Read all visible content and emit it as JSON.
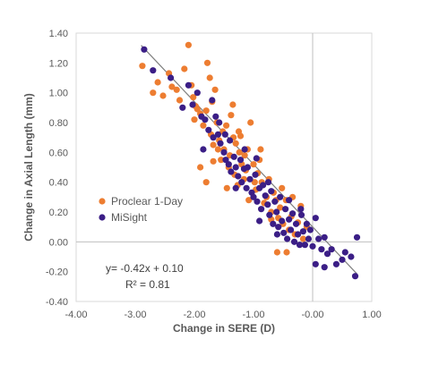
{
  "chart_data": {
    "type": "scatter",
    "title": "",
    "xlabel": "Change in SERE (D)",
    "ylabel": "Change in Axial Length  (mm)",
    "xlim": [
      -4.0,
      1.0
    ],
    "ylim": [
      -0.4,
      1.4
    ],
    "x_ticks": [
      "-4.00",
      "-3.00",
      "-2.00",
      "-1.00",
      "-0.00",
      "1.00"
    ],
    "y_ticks": [
      "-0.40",
      "-0.20",
      "0.00",
      "0.20",
      "0.40",
      "0.60",
      "0.80",
      "1.00",
      "1.20",
      "1.40"
    ],
    "grid": false,
    "reference_lines": {
      "x": 0,
      "y": 0
    },
    "legend": {
      "position": "left-middle"
    },
    "trendline": {
      "slope": -0.42,
      "intercept": 0.1,
      "x_range": [
        -2.9,
        0.75
      ]
    },
    "annotations": {
      "equation": "y= -0.42x + 0.10",
      "r2": "R² = 0.81"
    },
    "colors": {
      "Proclear 1-Day": "#ED7D31",
      "MiSight": "#3B1E86",
      "trendline": "#7F7F7F",
      "axis": "#BFBFBF"
    },
    "series": [
      {
        "name": "Proclear 1-Day",
        "points": [
          [
            -2.88,
            1.18
          ],
          [
            -2.7,
            1.0
          ],
          [
            -2.62,
            1.07
          ],
          [
            -2.53,
            0.98
          ],
          [
            -2.43,
            1.13
          ],
          [
            -2.38,
            1.04
          ],
          [
            -2.3,
            1.02
          ],
          [
            -2.25,
            0.95
          ],
          [
            -2.17,
            1.16
          ],
          [
            -2.1,
            1.32
          ],
          [
            -2.05,
            1.05
          ],
          [
            -2.02,
            0.97
          ],
          [
            -1.98,
            0.91
          ],
          [
            -1.95,
            0.89
          ],
          [
            -1.9,
            0.86
          ],
          [
            -1.85,
            0.78
          ],
          [
            -1.8,
            0.88
          ],
          [
            -1.78,
            1.2
          ],
          [
            -1.74,
            1.1
          ],
          [
            -1.72,
            0.72
          ],
          [
            -1.7,
            0.94
          ],
          [
            -1.68,
            0.65
          ],
          [
            -1.65,
            1.02
          ],
          [
            -1.62,
            0.8
          ],
          [
            -1.58,
            0.68
          ],
          [
            -1.55,
            0.55
          ],
          [
            -1.52,
            0.74
          ],
          [
            -1.5,
            0.62
          ],
          [
            -1.46,
            0.78
          ],
          [
            -1.42,
            0.5
          ],
          [
            -1.4,
            0.58
          ],
          [
            -1.38,
            0.85
          ],
          [
            -1.35,
            0.92
          ],
          [
            -1.32,
            0.45
          ],
          [
            -1.3,
            0.66
          ],
          [
            -1.27,
            0.38
          ],
          [
            -1.24,
            0.6
          ],
          [
            -1.22,
            0.71
          ],
          [
            -1.2,
            0.52
          ],
          [
            -1.16,
            0.42
          ],
          [
            -1.13,
            0.48
          ],
          [
            -1.1,
            0.62
          ],
          [
            -1.05,
            0.8
          ],
          [
            -1.0,
            0.52
          ],
          [
            -0.96,
            0.35
          ],
          [
            -0.93,
            0.46
          ],
          [
            -0.9,
            0.55
          ],
          [
            -0.86,
            0.4
          ],
          [
            -0.82,
            0.26
          ],
          [
            -0.78,
            0.3
          ],
          [
            -0.74,
            0.42
          ],
          [
            -0.7,
            0.2
          ],
          [
            -0.66,
            0.33
          ],
          [
            -0.62,
            0.28
          ],
          [
            -0.58,
            0.16
          ],
          [
            -0.55,
            0.23
          ],
          [
            -0.5,
            0.12
          ],
          [
            -0.45,
            0.28
          ],
          [
            -0.4,
            0.08
          ],
          [
            -0.36,
            0.17
          ],
          [
            -0.3,
            0.05
          ],
          [
            -0.25,
            0.13
          ],
          [
            -0.2,
            0.24
          ],
          [
            -0.16,
            0.02
          ],
          [
            -0.1,
            0.1
          ],
          [
            -0.44,
            -0.07
          ],
          [
            -0.6,
            -0.07
          ],
          [
            -1.8,
            0.4
          ],
          [
            -1.45,
            0.36
          ],
          [
            -1.08,
            0.28
          ],
          [
            -1.9,
            0.5
          ],
          [
            -1.6,
            0.62
          ],
          [
            -1.25,
            0.74
          ],
          [
            -0.88,
            0.62
          ],
          [
            -0.7,
            0.15
          ],
          [
            -2.0,
            0.82
          ],
          [
            -1.15,
            0.58
          ],
          [
            -0.52,
            0.36
          ],
          [
            -1.34,
            0.7
          ],
          [
            -0.98,
            0.4
          ],
          [
            -1.68,
            0.54
          ],
          [
            -0.34,
            0.3
          ]
        ]
      },
      {
        "name": "MiSight",
        "points": [
          [
            -2.85,
            1.29
          ],
          [
            -2.7,
            1.15
          ],
          [
            -2.4,
            1.1
          ],
          [
            -2.1,
            1.05
          ],
          [
            -2.03,
            0.92
          ],
          [
            -1.95,
            1.0
          ],
          [
            -1.88,
            0.84
          ],
          [
            -1.82,
            0.82
          ],
          [
            -1.76,
            0.75
          ],
          [
            -1.68,
            0.7
          ],
          [
            -1.64,
            0.84
          ],
          [
            -1.6,
            0.72
          ],
          [
            -1.56,
            0.66
          ],
          [
            -1.5,
            0.6
          ],
          [
            -1.47,
            0.55
          ],
          [
            -1.42,
            0.52
          ],
          [
            -1.4,
            0.68
          ],
          [
            -1.38,
            0.47
          ],
          [
            -1.33,
            0.57
          ],
          [
            -1.3,
            0.5
          ],
          [
            -1.26,
            0.44
          ],
          [
            -1.22,
            0.55
          ],
          [
            -1.2,
            0.4
          ],
          [
            -1.16,
            0.49
          ],
          [
            -1.12,
            0.36
          ],
          [
            -1.1,
            0.5
          ],
          [
            -1.06,
            0.42
          ],
          [
            -1.03,
            0.33
          ],
          [
            -1.0,
            0.3
          ],
          [
            -0.97,
            0.45
          ],
          [
            -0.94,
            0.27
          ],
          [
            -0.9,
            0.36
          ],
          [
            -0.87,
            0.22
          ],
          [
            -0.84,
            0.38
          ],
          [
            -0.8,
            0.31
          ],
          [
            -0.76,
            0.25
          ],
          [
            -0.73,
            0.18
          ],
          [
            -0.7,
            0.34
          ],
          [
            -0.67,
            0.12
          ],
          [
            -0.64,
            0.27
          ],
          [
            -0.61,
            0.2
          ],
          [
            -0.58,
            0.1
          ],
          [
            -0.55,
            0.3
          ],
          [
            -0.52,
            0.14
          ],
          [
            -0.49,
            0.06
          ],
          [
            -0.46,
            0.22
          ],
          [
            -0.43,
            0.02
          ],
          [
            -0.4,
            0.15
          ],
          [
            -0.37,
            0.08
          ],
          [
            -0.34,
            0.19
          ],
          [
            -0.31,
            0.0
          ],
          [
            -0.28,
            0.12
          ],
          [
            -0.25,
            0.05
          ],
          [
            -0.22,
            -0.02
          ],
          [
            -0.19,
            0.18
          ],
          [
            -0.16,
            0.07
          ],
          [
            -0.13,
            -0.02
          ],
          [
            -0.1,
            0.12
          ],
          [
            -0.07,
            0.02
          ],
          [
            -0.04,
            0.08
          ],
          [
            0.05,
            0.16
          ],
          [
            0.1,
            0.02
          ],
          [
            0.15,
            -0.05
          ],
          [
            0.2,
            0.03
          ],
          [
            0.25,
            -0.08
          ],
          [
            0.32,
            -0.05
          ],
          [
            0.4,
            -0.15
          ],
          [
            0.5,
            -0.12
          ],
          [
            0.55,
            -0.07
          ],
          [
            0.65,
            -0.1
          ],
          [
            0.75,
            0.03
          ],
          [
            0.72,
            -0.23
          ],
          [
            0.05,
            -0.15
          ],
          [
            0.2,
            -0.17
          ],
          [
            0.0,
            -0.03
          ],
          [
            -0.2,
            0.22
          ],
          [
            -1.7,
            0.95
          ],
          [
            -1.48,
            0.72
          ],
          [
            -1.15,
            0.62
          ],
          [
            -0.95,
            0.56
          ],
          [
            -0.6,
            0.05
          ],
          [
            -0.75,
            0.4
          ],
          [
            -1.3,
            0.36
          ],
          [
            -0.4,
            0.28
          ],
          [
            -0.9,
            0.14
          ],
          [
            -2.2,
            0.9
          ],
          [
            -1.85,
            0.62
          ],
          [
            -1.58,
            0.8
          ]
        ]
      }
    ]
  }
}
